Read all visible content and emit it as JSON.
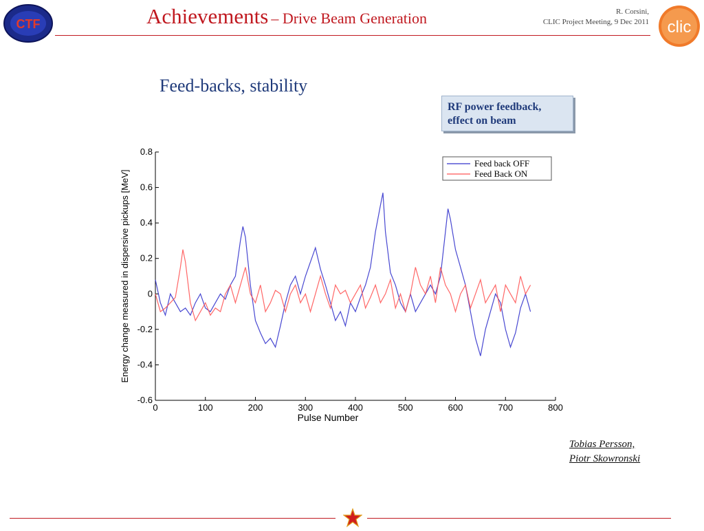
{
  "header": {
    "title_main": "Achievements",
    "title_sub": "– Drive Beam Generation",
    "author_line1": "R. Corsini,",
    "author_line2": "CLIC Project Meeting, 9 Dec 2011",
    "left_logo_text": "CTF",
    "right_logo_text": "clic"
  },
  "slide": {
    "subtitle": "Feed-backs, stability",
    "callout": "RF power feedback, effect on beam",
    "credits_line1": "Tobias Persson,",
    "credits_line2": "Piotr Skowronski"
  },
  "colors": {
    "accent": "#c0181f",
    "navy": "#1f3a7a",
    "off": "#3333cc",
    "on": "#ff5555"
  },
  "chart_data": {
    "type": "line",
    "xlabel": "Pulse Number",
    "ylabel": "Energy change measured in dispersive pickups [MeV]",
    "xlim": [
      0,
      800
    ],
    "ylim": [
      -0.6,
      0.8
    ],
    "xticks": [
      0,
      100,
      200,
      300,
      400,
      500,
      600,
      700,
      800
    ],
    "yticks": [
      -0.6,
      -0.4,
      -0.2,
      0,
      0.2,
      0.4,
      0.6,
      0.8
    ],
    "grid": false,
    "legend": "top-right",
    "series": [
      {
        "name": "Feed back OFF",
        "color": "#3333cc",
        "x": [
          0,
          10,
          20,
          30,
          40,
          50,
          60,
          70,
          80,
          90,
          100,
          110,
          120,
          130,
          140,
          150,
          160,
          170,
          175,
          180,
          190,
          200,
          210,
          220,
          230,
          240,
          250,
          260,
          270,
          280,
          290,
          300,
          310,
          320,
          330,
          340,
          350,
          360,
          370,
          380,
          390,
          400,
          410,
          420,
          430,
          440,
          450,
          455,
          460,
          470,
          480,
          490,
          500,
          510,
          520,
          530,
          540,
          550,
          560,
          570,
          580,
          585,
          590,
          600,
          610,
          620,
          630,
          640,
          650,
          660,
          670,
          680,
          690,
          700,
          710,
          720,
          730,
          740,
          750
        ],
        "y": [
          0.08,
          -0.05,
          -0.12,
          0.0,
          -0.05,
          -0.1,
          -0.08,
          -0.12,
          -0.05,
          0.0,
          -0.08,
          -0.1,
          -0.05,
          0.0,
          -0.03,
          0.05,
          0.1,
          0.3,
          0.38,
          0.32,
          0.05,
          -0.15,
          -0.22,
          -0.28,
          -0.25,
          -0.3,
          -0.18,
          -0.05,
          0.05,
          0.1,
          0.0,
          0.1,
          0.18,
          0.26,
          0.14,
          0.05,
          -0.05,
          -0.15,
          -0.1,
          -0.18,
          -0.05,
          -0.1,
          -0.02,
          0.05,
          0.15,
          0.35,
          0.5,
          0.57,
          0.35,
          0.12,
          0.05,
          -0.05,
          -0.1,
          0.0,
          -0.1,
          -0.05,
          0.0,
          0.05,
          0.0,
          0.1,
          0.35,
          0.48,
          0.42,
          0.25,
          0.15,
          0.05,
          -0.1,
          -0.25,
          -0.35,
          -0.2,
          -0.1,
          0.0,
          -0.05,
          -0.2,
          -0.3,
          -0.22,
          -0.08,
          0.0,
          -0.1
        ]
      },
      {
        "name": "Feed Back ON",
        "color": "#ff5555",
        "x": [
          0,
          10,
          20,
          30,
          40,
          50,
          55,
          60,
          70,
          80,
          90,
          100,
          110,
          120,
          130,
          140,
          150,
          160,
          170,
          180,
          190,
          200,
          210,
          220,
          230,
          240,
          250,
          260,
          270,
          280,
          290,
          300,
          310,
          320,
          330,
          340,
          350,
          360,
          370,
          380,
          390,
          400,
          410,
          420,
          430,
          440,
          450,
          460,
          470,
          480,
          490,
          500,
          510,
          520,
          530,
          540,
          550,
          560,
          570,
          580,
          590,
          600,
          610,
          620,
          630,
          640,
          650,
          660,
          670,
          680,
          690,
          700,
          710,
          720,
          730,
          740,
          750
        ],
        "y": [
          0.0,
          -0.1,
          -0.08,
          -0.05,
          -0.02,
          0.15,
          0.25,
          0.18,
          -0.05,
          -0.15,
          -0.1,
          -0.05,
          -0.12,
          -0.08,
          -0.1,
          0.0,
          0.05,
          -0.05,
          0.05,
          0.15,
          0.0,
          -0.05,
          0.05,
          -0.1,
          -0.05,
          0.02,
          0.0,
          -0.1,
          0.0,
          0.05,
          -0.05,
          0.0,
          -0.1,
          0.0,
          0.1,
          0.0,
          -0.08,
          0.05,
          0.0,
          0.02,
          -0.05,
          0.0,
          0.05,
          -0.08,
          -0.02,
          0.05,
          -0.05,
          0.0,
          0.08,
          -0.08,
          0.0,
          -0.1,
          0.0,
          0.15,
          0.05,
          0.0,
          0.1,
          -0.05,
          0.15,
          0.05,
          0.0,
          -0.1,
          0.0,
          0.05,
          -0.08,
          0.0,
          0.08,
          -0.05,
          0.0,
          0.05,
          -0.1,
          0.05,
          0.0,
          -0.05,
          0.1,
          0.0,
          0.05
        ]
      }
    ]
  }
}
